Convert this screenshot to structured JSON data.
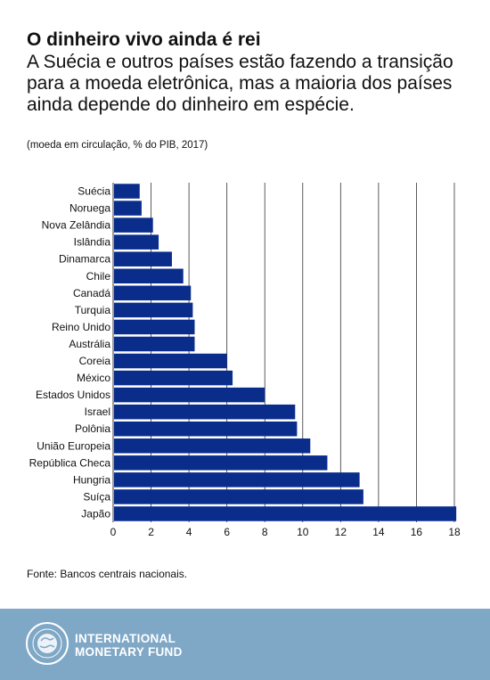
{
  "header": {
    "title": "O dinheiro vivo ainda é rei",
    "subtitle": "A Suécia e outros países estão fazendo a transição para a moeda eletrônica, mas a maioria dos países ainda depende do dinheiro em espécie.",
    "note": "(moeda em circulação, % do PIB, 2017)"
  },
  "chart_data": {
    "type": "bar",
    "orientation": "horizontal",
    "categories": [
      "Suécia",
      "Noruega",
      "Nova Zelândia",
      "Islândia",
      "Dinamarca",
      "Chile",
      "Canadá",
      "Turquia",
      "Reino Unido",
      "Austrália",
      "Coreia",
      "México",
      "Estados Unidos",
      "Israel",
      "Polônia",
      "União Europeia",
      "República Checa",
      "Hungria",
      "Suíça",
      "Japão"
    ],
    "values": [
      1.4,
      1.5,
      2.1,
      2.4,
      3.1,
      3.7,
      4.1,
      4.2,
      4.3,
      4.3,
      6.0,
      6.3,
      8.0,
      9.6,
      9.7,
      10.4,
      11.3,
      13.0,
      13.2,
      18.1
    ],
    "xlim": [
      0,
      18
    ],
    "xticks": [
      0,
      2,
      4,
      6,
      8,
      10,
      12,
      14,
      16,
      18
    ],
    "grid": true,
    "bar_color": "#0a2d8c"
  },
  "source": "Fonte: Bancos centrais nacionais.",
  "footer": {
    "org_line1": "INTERNATIONAL",
    "org_line2": "MONETARY FUND",
    "background": "#7fa7c6"
  }
}
